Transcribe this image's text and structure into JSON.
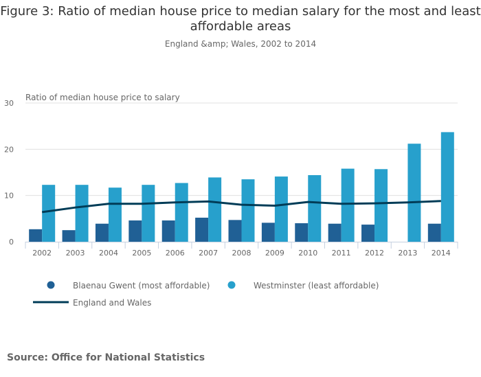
{
  "title": "Figure 3: Ratio of median house price to median salary for the most and least affordable areas",
  "subtitle": "England &amp; Wales, 2002 to 2014",
  "source": "Source: Office for National Statistics",
  "chart_data": {
    "type": "bar",
    "ylabel": "Ratio of median house price to salary",
    "ylim": [
      0,
      30
    ],
    "yticks": [
      0,
      10,
      20,
      30
    ],
    "grid": true,
    "legend_position": "bottom",
    "categories": [
      "2002",
      "2003",
      "2004",
      "2005",
      "2006",
      "2007",
      "2008",
      "2009",
      "2010",
      "2011",
      "2012",
      "2013",
      "2014"
    ],
    "series": [
      {
        "name": "Blaenau Gwent (most affordable)",
        "type": "bar",
        "color": "#206095",
        "values": [
          2.7,
          2.5,
          3.9,
          4.6,
          4.6,
          5.2,
          4.7,
          4.1,
          4.0,
          3.9,
          3.7,
          null,
          3.9
        ]
      },
      {
        "name": "Westminster (least affordable)",
        "type": "bar",
        "color": "#27a0cc",
        "values": [
          12.3,
          12.3,
          11.7,
          12.3,
          12.7,
          13.9,
          13.5,
          14.1,
          14.4,
          15.8,
          15.7,
          21.2,
          23.7
        ]
      },
      {
        "name": "England and Wales",
        "type": "line",
        "color": "#003c57",
        "values": [
          6.4,
          7.4,
          8.2,
          8.2,
          8.5,
          8.7,
          8.0,
          7.8,
          8.6,
          8.2,
          8.3,
          8.5,
          8.8
        ]
      }
    ]
  }
}
